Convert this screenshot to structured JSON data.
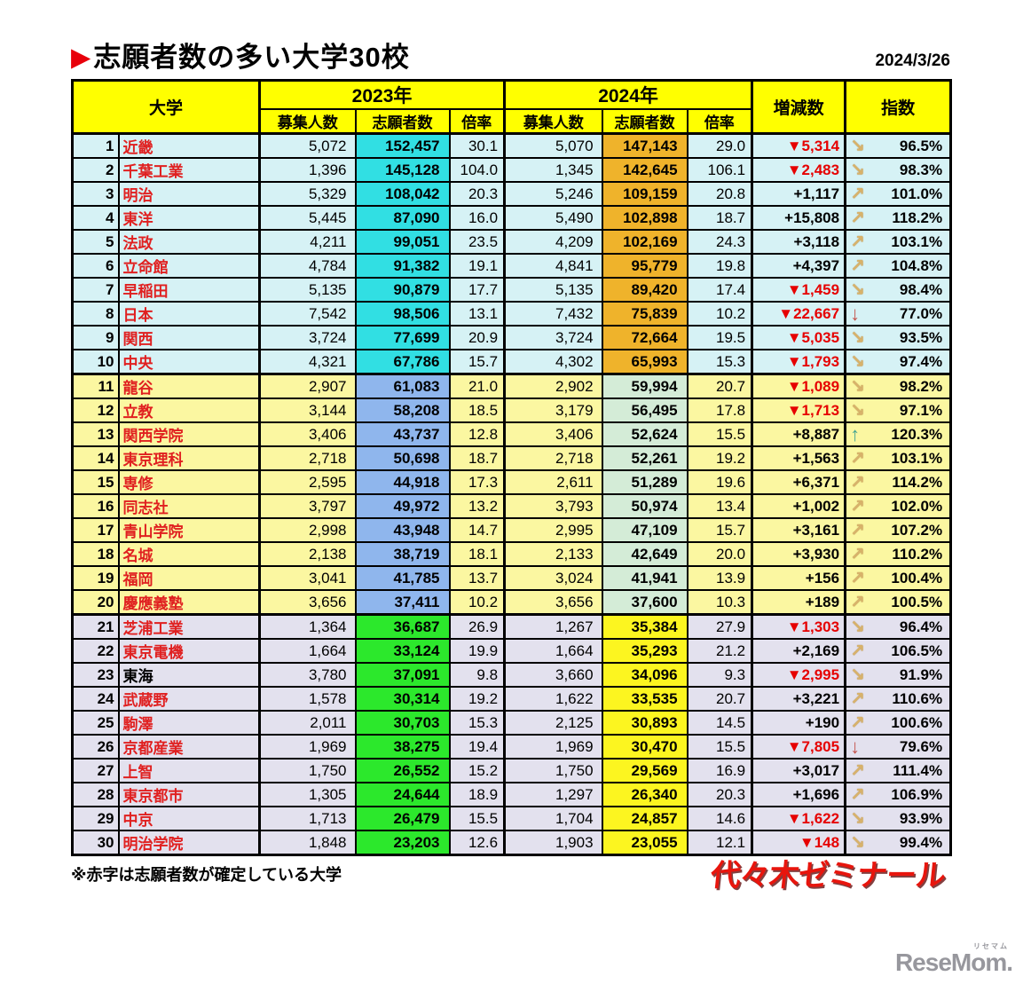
{
  "meta": {
    "title": "志願者数の多い大学30校",
    "title_marker": "▶",
    "date": "2024/3/26",
    "note": "※赤字は志願者数が確定している大学",
    "logo": "代々木ゼミナール",
    "watermark": "ReseMom.",
    "watermark_small": "リセマム"
  },
  "colors": {
    "header_bg": "#FFFF00",
    "marker_red": "#E8000B",
    "red_text": "#E02020",
    "negative": "#E60000",
    "g1_bg": "#D6F2F5",
    "g1_s23": "#31DFE3",
    "g1_s24": "#EFB32B",
    "g2_bg": "#FBF7A1",
    "g2_s23": "#8FB6ED",
    "g2_s24": "#D4ECD7",
    "g3_bg": "#E3E1EE",
    "g3_s23": "#2CE82C",
    "g3_s24": "#FCF520",
    "arrow_tan": "#D8B26A",
    "arrow_red": "#C4524A",
    "arrow_teal": "#44A492",
    "logo_red": "#E8150D"
  },
  "chart_data": {
    "type": "table",
    "title": "志願者数の多い大学30校",
    "header": {
      "univ": "大学",
      "year2023": "2023年",
      "year2024": "2024年",
      "recruit": "募集人数",
      "applicants": "志願者数",
      "ratio": "倍率",
      "change": "増減数",
      "index": "指数"
    },
    "legend_note": "赤字は志願者数が確定している大学",
    "columns": [
      "大学",
      "2023年 募集人数",
      "2023年 志願者数",
      "2023年 倍率",
      "2024年 募集人数",
      "2024年 志願者数",
      "2024年 倍率",
      "増減数",
      "指数"
    ],
    "rows": [
      {
        "rank": 1,
        "name": "近畿",
        "confirmed": true,
        "recruit_2023": "5,072",
        "applicants_2023": "152,457",
        "ratio_2023": "30.1",
        "recruit_2024": "5,070",
        "applicants_2024": "147,143",
        "ratio_2024": "29.0",
        "change": "▼5,314",
        "negative": true,
        "trend": "down-slight",
        "index": "96.5%"
      },
      {
        "rank": 2,
        "name": "千葉工業",
        "confirmed": true,
        "recruit_2023": "1,396",
        "applicants_2023": "145,128",
        "ratio_2023": "104.0",
        "recruit_2024": "1,345",
        "applicants_2024": "142,645",
        "ratio_2024": "106.1",
        "change": "▼2,483",
        "negative": true,
        "trend": "down-slight",
        "index": "98.3%"
      },
      {
        "rank": 3,
        "name": "明治",
        "confirmed": true,
        "recruit_2023": "5,329",
        "applicants_2023": "108,042",
        "ratio_2023": "20.3",
        "recruit_2024": "5,246",
        "applicants_2024": "109,159",
        "ratio_2024": "20.8",
        "change": "+1,117",
        "negative": false,
        "trend": "up-slight",
        "index": "101.0%"
      },
      {
        "rank": 4,
        "name": "東洋",
        "confirmed": true,
        "recruit_2023": "5,445",
        "applicants_2023": "87,090",
        "ratio_2023": "16.0",
        "recruit_2024": "5,490",
        "applicants_2024": "102,898",
        "ratio_2024": "18.7",
        "change": "+15,808",
        "negative": false,
        "trend": "up-slight",
        "index": "118.2%"
      },
      {
        "rank": 5,
        "name": "法政",
        "confirmed": true,
        "recruit_2023": "4,211",
        "applicants_2023": "99,051",
        "ratio_2023": "23.5",
        "recruit_2024": "4,209",
        "applicants_2024": "102,169",
        "ratio_2024": "24.3",
        "change": "+3,118",
        "negative": false,
        "trend": "up-slight",
        "index": "103.1%"
      },
      {
        "rank": 6,
        "name": "立命館",
        "confirmed": true,
        "recruit_2023": "4,784",
        "applicants_2023": "91,382",
        "ratio_2023": "19.1",
        "recruit_2024": "4,841",
        "applicants_2024": "95,779",
        "ratio_2024": "19.8",
        "change": "+4,397",
        "negative": false,
        "trend": "up-slight",
        "index": "104.8%"
      },
      {
        "rank": 7,
        "name": "早稲田",
        "confirmed": true,
        "recruit_2023": "5,135",
        "applicants_2023": "90,879",
        "ratio_2023": "17.7",
        "recruit_2024": "5,135",
        "applicants_2024": "89,420",
        "ratio_2024": "17.4",
        "change": "▼1,459",
        "negative": true,
        "trend": "down-slight",
        "index": "98.4%"
      },
      {
        "rank": 8,
        "name": "日本",
        "confirmed": true,
        "recruit_2023": "7,542",
        "applicants_2023": "98,506",
        "ratio_2023": "13.1",
        "recruit_2024": "7,432",
        "applicants_2024": "75,839",
        "ratio_2024": "10.2",
        "change": "▼22,667",
        "negative": true,
        "trend": "down-big",
        "index": "77.0%"
      },
      {
        "rank": 9,
        "name": "関西",
        "confirmed": true,
        "recruit_2023": "3,724",
        "applicants_2023": "77,699",
        "ratio_2023": "20.9",
        "recruit_2024": "3,724",
        "applicants_2024": "72,664",
        "ratio_2024": "19.5",
        "change": "▼5,035",
        "negative": true,
        "trend": "down-slight",
        "index": "93.5%"
      },
      {
        "rank": 10,
        "name": "中央",
        "confirmed": true,
        "recruit_2023": "4,321",
        "applicants_2023": "67,786",
        "ratio_2023": "15.7",
        "recruit_2024": "4,302",
        "applicants_2024": "65,993",
        "ratio_2024": "15.3",
        "change": "▼1,793",
        "negative": true,
        "trend": "down-slight",
        "index": "97.4%"
      },
      {
        "rank": 11,
        "name": "龍谷",
        "confirmed": true,
        "recruit_2023": "2,907",
        "applicants_2023": "61,083",
        "ratio_2023": "21.0",
        "recruit_2024": "2,902",
        "applicants_2024": "59,994",
        "ratio_2024": "20.7",
        "change": "▼1,089",
        "negative": true,
        "trend": "down-slight",
        "index": "98.2%"
      },
      {
        "rank": 12,
        "name": "立教",
        "confirmed": true,
        "recruit_2023": "3,144",
        "applicants_2023": "58,208",
        "ratio_2023": "18.5",
        "recruit_2024": "3,179",
        "applicants_2024": "56,495",
        "ratio_2024": "17.8",
        "change": "▼1,713",
        "negative": true,
        "trend": "down-slight",
        "index": "97.1%"
      },
      {
        "rank": 13,
        "name": "関西学院",
        "confirmed": true,
        "recruit_2023": "3,406",
        "applicants_2023": "43,737",
        "ratio_2023": "12.8",
        "recruit_2024": "3,406",
        "applicants_2024": "52,624",
        "ratio_2024": "15.5",
        "change": "+8,887",
        "negative": false,
        "trend": "up-big",
        "index": "120.3%"
      },
      {
        "rank": 14,
        "name": "東京理科",
        "confirmed": true,
        "recruit_2023": "2,718",
        "applicants_2023": "50,698",
        "ratio_2023": "18.7",
        "recruit_2024": "2,718",
        "applicants_2024": "52,261",
        "ratio_2024": "19.2",
        "change": "+1,563",
        "negative": false,
        "trend": "up-slight",
        "index": "103.1%"
      },
      {
        "rank": 15,
        "name": "専修",
        "confirmed": true,
        "recruit_2023": "2,595",
        "applicants_2023": "44,918",
        "ratio_2023": "17.3",
        "recruit_2024": "2,611",
        "applicants_2024": "51,289",
        "ratio_2024": "19.6",
        "change": "+6,371",
        "negative": false,
        "trend": "up-slight",
        "index": "114.2%"
      },
      {
        "rank": 16,
        "name": "同志社",
        "confirmed": true,
        "recruit_2023": "3,797",
        "applicants_2023": "49,972",
        "ratio_2023": "13.2",
        "recruit_2024": "3,793",
        "applicants_2024": "50,974",
        "ratio_2024": "13.4",
        "change": "+1,002",
        "negative": false,
        "trend": "up-slight",
        "index": "102.0%"
      },
      {
        "rank": 17,
        "name": "青山学院",
        "confirmed": true,
        "recruit_2023": "2,998",
        "applicants_2023": "43,948",
        "ratio_2023": "14.7",
        "recruit_2024": "2,995",
        "applicants_2024": "47,109",
        "ratio_2024": "15.7",
        "change": "+3,161",
        "negative": false,
        "trend": "up-slight",
        "index": "107.2%"
      },
      {
        "rank": 18,
        "name": "名城",
        "confirmed": true,
        "recruit_2023": "2,138",
        "applicants_2023": "38,719",
        "ratio_2023": "18.1",
        "recruit_2024": "2,133",
        "applicants_2024": "42,649",
        "ratio_2024": "20.0",
        "change": "+3,930",
        "negative": false,
        "trend": "up-slight",
        "index": "110.2%"
      },
      {
        "rank": 19,
        "name": "福岡",
        "confirmed": true,
        "recruit_2023": "3,041",
        "applicants_2023": "41,785",
        "ratio_2023": "13.7",
        "recruit_2024": "3,024",
        "applicants_2024": "41,941",
        "ratio_2024": "13.9",
        "change": "+156",
        "negative": false,
        "trend": "up-slight",
        "index": "100.4%"
      },
      {
        "rank": 20,
        "name": "慶應義塾",
        "confirmed": true,
        "recruit_2023": "3,656",
        "applicants_2023": "37,411",
        "ratio_2023": "10.2",
        "recruit_2024": "3,656",
        "applicants_2024": "37,600",
        "ratio_2024": "10.3",
        "change": "+189",
        "negative": false,
        "trend": "up-slight",
        "index": "100.5%"
      },
      {
        "rank": 21,
        "name": "芝浦工業",
        "confirmed": true,
        "recruit_2023": "1,364",
        "applicants_2023": "36,687",
        "ratio_2023": "26.9",
        "recruit_2024": "1,267",
        "applicants_2024": "35,384",
        "ratio_2024": "27.9",
        "change": "▼1,303",
        "negative": true,
        "trend": "down-slight",
        "index": "96.4%"
      },
      {
        "rank": 22,
        "name": "東京電機",
        "confirmed": true,
        "recruit_2023": "1,664",
        "applicants_2023": "33,124",
        "ratio_2023": "19.9",
        "recruit_2024": "1,664",
        "applicants_2024": "35,293",
        "ratio_2024": "21.2",
        "change": "+2,169",
        "negative": false,
        "trend": "up-slight",
        "index": "106.5%"
      },
      {
        "rank": 23,
        "name": "東海",
        "confirmed": false,
        "recruit_2023": "3,780",
        "applicants_2023": "37,091",
        "ratio_2023": "9.8",
        "recruit_2024": "3,660",
        "applicants_2024": "34,096",
        "ratio_2024": "9.3",
        "change": "▼2,995",
        "negative": true,
        "trend": "down-slight",
        "index": "91.9%"
      },
      {
        "rank": 24,
        "name": "武蔵野",
        "confirmed": true,
        "recruit_2023": "1,578",
        "applicants_2023": "30,314",
        "ratio_2023": "19.2",
        "recruit_2024": "1,622",
        "applicants_2024": "33,535",
        "ratio_2024": "20.7",
        "change": "+3,221",
        "negative": false,
        "trend": "up-slight",
        "index": "110.6%"
      },
      {
        "rank": 25,
        "name": "駒澤",
        "confirmed": true,
        "recruit_2023": "2,011",
        "applicants_2023": "30,703",
        "ratio_2023": "15.3",
        "recruit_2024": "2,125",
        "applicants_2024": "30,893",
        "ratio_2024": "14.5",
        "change": "+190",
        "negative": false,
        "trend": "up-slight",
        "index": "100.6%"
      },
      {
        "rank": 26,
        "name": "京都産業",
        "confirmed": true,
        "recruit_2023": "1,969",
        "applicants_2023": "38,275",
        "ratio_2023": "19.4",
        "recruit_2024": "1,969",
        "applicants_2024": "30,470",
        "ratio_2024": "15.5",
        "change": "▼7,805",
        "negative": true,
        "trend": "down-big",
        "index": "79.6%"
      },
      {
        "rank": 27,
        "name": "上智",
        "confirmed": true,
        "recruit_2023": "1,750",
        "applicants_2023": "26,552",
        "ratio_2023": "15.2",
        "recruit_2024": "1,750",
        "applicants_2024": "29,569",
        "ratio_2024": "16.9",
        "change": "+3,017",
        "negative": false,
        "trend": "up-slight",
        "index": "111.4%"
      },
      {
        "rank": 28,
        "name": "東京都市",
        "confirmed": true,
        "recruit_2023": "1,305",
        "applicants_2023": "24,644",
        "ratio_2023": "18.9",
        "recruit_2024": "1,297",
        "applicants_2024": "26,340",
        "ratio_2024": "20.3",
        "change": "+1,696",
        "negative": false,
        "trend": "up-slight",
        "index": "106.9%"
      },
      {
        "rank": 29,
        "name": "中京",
        "confirmed": true,
        "recruit_2023": "1,713",
        "applicants_2023": "26,479",
        "ratio_2023": "15.5",
        "recruit_2024": "1,704",
        "applicants_2024": "24,857",
        "ratio_2024": "14.6",
        "change": "▼1,622",
        "negative": true,
        "trend": "down-slight",
        "index": "93.9%"
      },
      {
        "rank": 30,
        "name": "明治学院",
        "confirmed": true,
        "recruit_2023": "1,848",
        "applicants_2023": "23,203",
        "ratio_2023": "12.6",
        "recruit_2024": "1,903",
        "applicants_2024": "23,055",
        "ratio_2024": "12.1",
        "change": "▼148",
        "negative": true,
        "trend": "down-slight",
        "index": "99.4%"
      }
    ]
  }
}
